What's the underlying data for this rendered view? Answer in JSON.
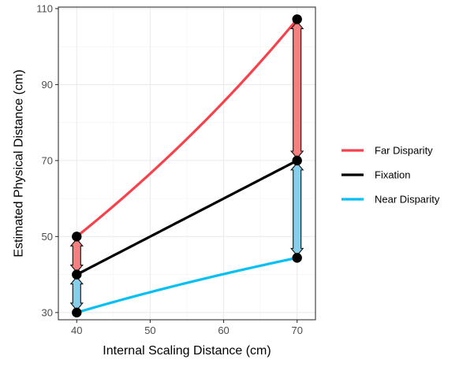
{
  "chart_data": {
    "type": "line",
    "title": "",
    "xlabel": "Internal Scaling Distance (cm)",
    "ylabel": "Estimated Physical Distance (cm)",
    "xlim": [
      37.5,
      72.5
    ],
    "ylim": [
      28.1,
      110.4
    ],
    "x_ticks": [
      40,
      50,
      60,
      70
    ],
    "x_tick_labels": [
      "40",
      "50",
      "60",
      "70"
    ],
    "y_ticks": [
      30,
      50,
      70,
      90,
      110
    ],
    "y_tick_labels": [
      "30",
      "50",
      "70",
      "90",
      "110"
    ],
    "grid": true,
    "legend_position": "right",
    "series": [
      {
        "name": "Far Disparity",
        "color": "#F8414B",
        "curve": "far-projection",
        "x": [
          40,
          70
        ],
        "y": [
          50,
          107.2
        ]
      },
      {
        "name": "Fixation",
        "color": "#000000",
        "curve": "linear",
        "x": [
          40,
          70
        ],
        "y": [
          40,
          70
        ]
      },
      {
        "name": "Near Disparity",
        "color": "#00BFF3",
        "curve": "near-projection",
        "x": [
          40,
          70
        ],
        "y": [
          30,
          44.4
        ]
      }
    ],
    "points": [
      {
        "x": 40,
        "y": 50
      },
      {
        "x": 40,
        "y": 40
      },
      {
        "x": 40,
        "y": 30
      },
      {
        "x": 70,
        "y": 107.2
      },
      {
        "x": 70,
        "y": 70
      },
      {
        "x": 70,
        "y": 44.4
      }
    ],
    "arrows": [
      {
        "x": 40,
        "from": 40,
        "to": 50,
        "color": "#F48080"
      },
      {
        "x": 40,
        "from": 30,
        "to": 40,
        "color": "#87CEEB"
      },
      {
        "x": 70,
        "from": 70,
        "to": 107.2,
        "color": "#F48080"
      },
      {
        "x": 70,
        "from": 44.4,
        "to": 70,
        "color": "#87CEEB"
      }
    ]
  }
}
